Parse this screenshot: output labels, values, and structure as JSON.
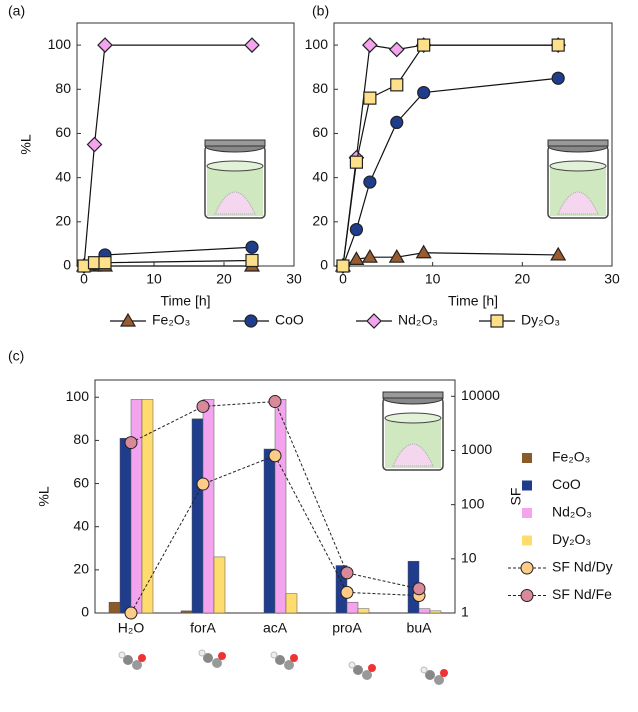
{
  "chart_data": [
    {
      "type": "line",
      "panel_label": "(a)",
      "x_label": "Time [h]",
      "y_label": "%L",
      "x": [
        0,
        1.5,
        3,
        24
      ],
      "xlim": [
        -1,
        30
      ],
      "xticks": [
        0,
        10,
        20,
        30
      ],
      "ylim": [
        0,
        110
      ],
      "yticks": [
        0,
        20,
        40,
        60,
        80,
        100
      ],
      "series": [
        {
          "name": "Fe₂O₃",
          "color": "#9a5b2e",
          "marker": "triangle",
          "values": [
            0,
            0,
            0,
            0
          ]
        },
        {
          "name": "CoO",
          "color": "#1f3d8c",
          "marker": "circle",
          "values": [
            0,
            1,
            5,
            8.5
          ]
        },
        {
          "name": "Nd₂O₃",
          "color": "#f4a3ef",
          "marker": "diamond",
          "values": [
            0,
            55,
            100,
            100
          ]
        },
        {
          "name": "Dy₂O₃",
          "color": "#ffe08a",
          "marker": "square",
          "values": [
            0,
            1.5,
            1.5,
            2.5
          ]
        }
      ]
    },
    {
      "type": "line",
      "panel_label": "(b)",
      "x_label": "Time [h]",
      "x": [
        0,
        1.5,
        3,
        6,
        9,
        24
      ],
      "xlim": [
        -1,
        30
      ],
      "xticks": [
        0,
        10,
        20,
        30
      ],
      "ylim": [
        0,
        110
      ],
      "yticks": [
        0,
        20,
        40,
        60,
        80,
        100
      ],
      "series": [
        {
          "color": "#9a5b2e",
          "marker": "triangle",
          "values": [
            0,
            3,
            4,
            4,
            6,
            5
          ]
        },
        {
          "color": "#1f3d8c",
          "marker": "circle",
          "values": [
            0,
            16.5,
            38,
            65,
            78.5,
            85
          ]
        },
        {
          "color": "#f4a3ef",
          "marker": "diamond",
          "values": [
            0,
            49,
            100,
            98,
            100,
            100
          ]
        },
        {
          "color": "#ffe08a",
          "marker": "square",
          "values": [
            0,
            47,
            76,
            82,
            100,
            100
          ]
        }
      ]
    },
    {
      "type": "bar",
      "panel_label": "(c)",
      "y_label": "%L",
      "y2_label": "SF",
      "categories": [
        "H₂O",
        "forA",
        "acA",
        "proA",
        "buA"
      ],
      "ylim": [
        0,
        108
      ],
      "yticks": [
        0,
        20,
        40,
        60,
        80,
        100
      ],
      "y2lim": [
        1,
        20000
      ],
      "y2ticks": [
        1,
        10,
        100,
        1000,
        10000
      ],
      "y2scale": "log",
      "series": [
        {
          "name": "Fe₂O₃",
          "color": "#8b5a2b",
          "values": [
            5,
            1,
            0,
            0,
            0
          ]
        },
        {
          "name": "CoO",
          "color": "#1f3d8c",
          "values": [
            81,
            90,
            76,
            22,
            24
          ]
        },
        {
          "name": "Nd₂O₃",
          "color": "#f4a3ef",
          "values": [
            99,
            99,
            99,
            5,
            2
          ]
        },
        {
          "name": "Dy₂O₃",
          "color": "#ffdc6e",
          "values": [
            99,
            26,
            9,
            2,
            1
          ]
        },
        {
          "name": "SF Nd/Dy",
          "color": "#ffcc88",
          "axis": "y2",
          "values": [
            1,
            240,
            800,
            2.4,
            2.1
          ]
        },
        {
          "name": "SF Nd/Fe",
          "color": "#d9899a",
          "axis": "y2",
          "values": [
            1400,
            6500,
            8000,
            5.5,
            2.8
          ]
        }
      ]
    }
  ]
}
